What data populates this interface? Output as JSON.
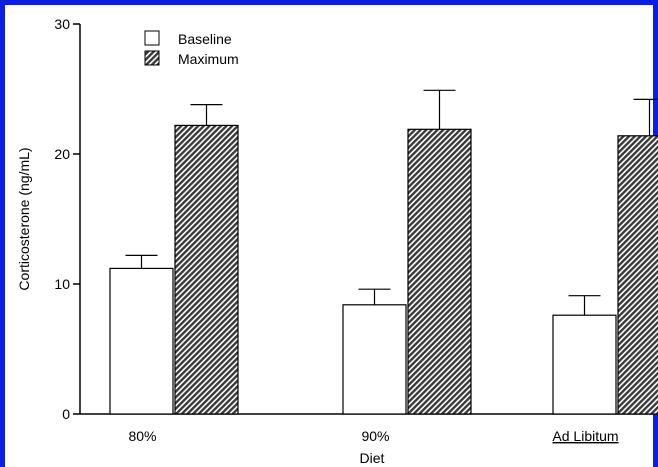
{
  "chart_data": {
    "type": "bar",
    "title": "",
    "xlabel": "Diet",
    "ylabel": "Corticosterone (ng/mL)",
    "ylim": [
      0,
      30
    ],
    "yticks": [
      0,
      10,
      20,
      30
    ],
    "categories": [
      "80%",
      "90%",
      "Ad Libitum"
    ],
    "category_underline": [
      false,
      false,
      true
    ],
    "series": [
      {
        "name": "Baseline",
        "values": [
          11.2,
          8.4,
          7.6
        ],
        "errors": [
          1.0,
          1.2,
          1.5
        ],
        "fill": "#ffffff",
        "pattern": "none"
      },
      {
        "name": "Maximum",
        "values": [
          22.2,
          21.9,
          21.4
        ],
        "errors": [
          1.6,
          3.0,
          2.8
        ],
        "fill": "#555555",
        "pattern": "diagonal-hatch"
      }
    ],
    "legend_position": "top-left",
    "grid": false
  },
  "colors": {
    "frame": "#0a1ee6",
    "bar_outline": "#000000"
  }
}
